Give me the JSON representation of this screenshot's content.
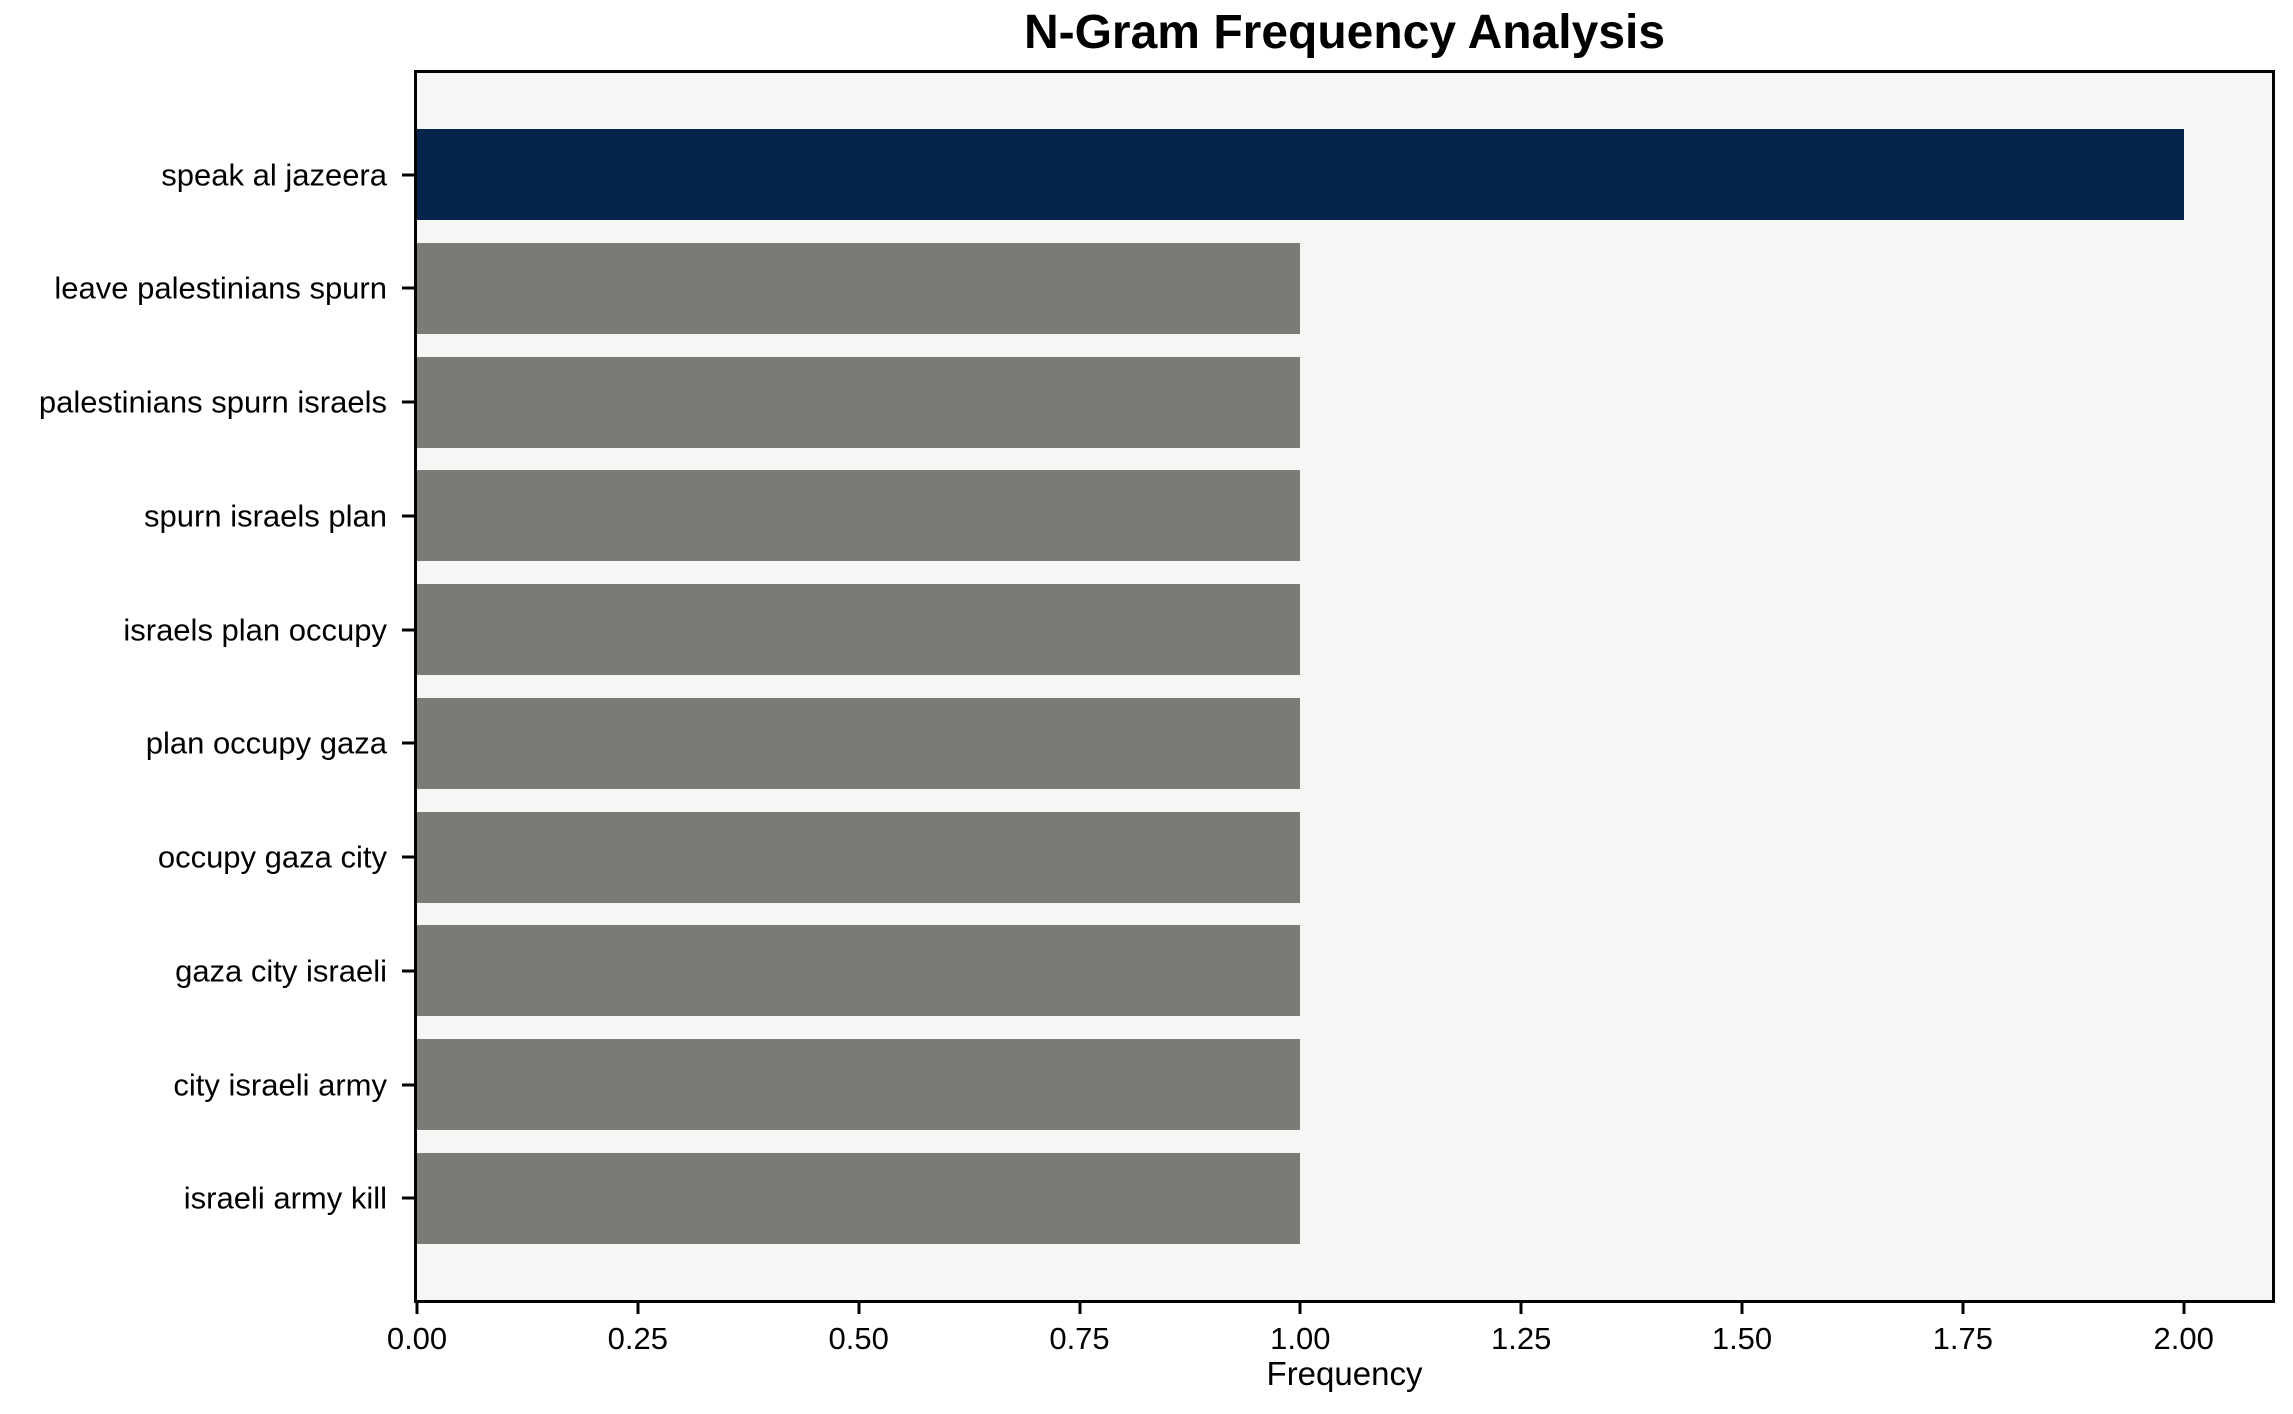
{
  "chart_data": {
    "type": "bar",
    "orientation": "horizontal",
    "title": "N-Gram Frequency Analysis",
    "xlabel": "Frequency",
    "ylabel": "",
    "categories": [
      "speak al jazeera",
      "leave palestinians spurn",
      "palestinians spurn israels",
      "spurn israels plan",
      "israels plan occupy",
      "plan occupy gaza",
      "occupy gaza city",
      "gaza city israeli",
      "city israeli army",
      "israeli army kill"
    ],
    "values": [
      2,
      1,
      1,
      1,
      1,
      1,
      1,
      1,
      1,
      1
    ],
    "bar_colors": [
      "#06234a",
      "#7a7a76",
      "#7a7a76",
      "#7a7a76",
      "#7a7a76",
      "#7a7a76",
      "#7a7a76",
      "#7a7a76",
      "#7a7a76",
      "#7a7a76"
    ],
    "highlight_index": 0,
    "xlim": [
      0,
      2.1
    ],
    "xticks": [
      "0.00",
      "0.25",
      "0.50",
      "0.75",
      "1.00",
      "1.25",
      "1.50",
      "1.75",
      "2.00"
    ],
    "xtick_values": [
      0,
      0.25,
      0.5,
      0.75,
      1.0,
      1.25,
      1.5,
      1.75,
      2.0
    ],
    "grid": false,
    "legend": null,
    "colors": {
      "highlight_bar": "#06234a",
      "default_bar": "#7a7a76",
      "plot_background": "#f7f6f5",
      "figure_background": "#ffffff",
      "spine": "#000000",
      "text": "#000000"
    }
  }
}
